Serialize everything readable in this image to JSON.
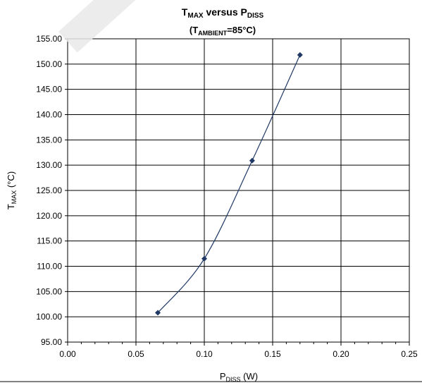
{
  "chart_data": {
    "type": "scatter",
    "title": {
      "main": "T",
      "main_sub": "MAX",
      "mid": " versus P",
      "end_sub": "DISS"
    },
    "subtitle": {
      "open": "(T",
      "sub": "AMBIENT",
      "close": "=85°C)"
    },
    "xlabel": {
      "base": "P",
      "sub": "DISS",
      "rest": " (W)"
    },
    "ylabel": {
      "base": "T",
      "sub": "MAX",
      "rest": " (°C)"
    },
    "xlim": [
      0,
      0.25
    ],
    "ylim": [
      95,
      155
    ],
    "xticks": [
      0,
      0.05,
      0.1,
      0.15,
      0.2,
      0.25
    ],
    "xtick_labels": [
      "0.00",
      "0.05",
      "0.10",
      "0.15",
      "0.20",
      "0.25"
    ],
    "yticks": [
      95,
      100,
      105,
      110,
      115,
      120,
      125,
      130,
      135,
      140,
      145,
      150,
      155
    ],
    "ytick_labels": [
      "95.00",
      "100.00",
      "105.00",
      "110.00",
      "115.00",
      "120.00",
      "125.00",
      "130.00",
      "135.00",
      "140.00",
      "145.00",
      "150.00",
      "155.00"
    ],
    "grid": true,
    "series": [
      {
        "x": [
          0.066,
          0.1,
          0.135,
          0.17
        ],
        "y": [
          100.8,
          111.5,
          130.9,
          151.8
        ],
        "color": "#1f3864",
        "marker": "diamond",
        "smooth": true
      }
    ]
  }
}
